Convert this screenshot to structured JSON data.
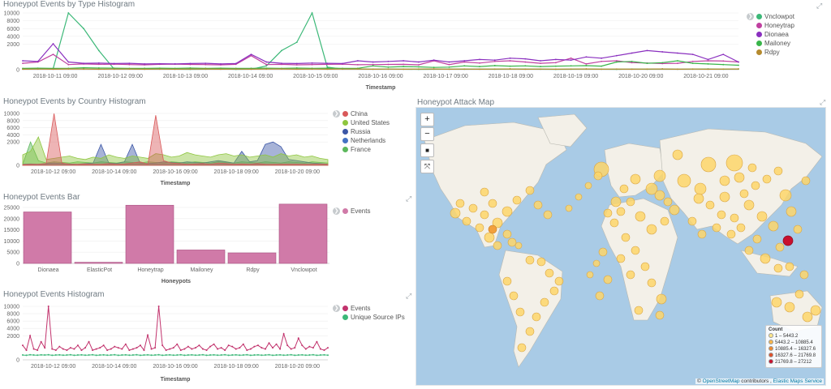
{
  "panels": {
    "type_hist": {
      "title": "Honeypot Events by Type Histogram",
      "xlabel": "Timestamp"
    },
    "country_hist": {
      "title": "Honeypot Events by Country Histogram",
      "xlabel": "Timestamp"
    },
    "bar": {
      "title": "Honeypot Events Bar",
      "xlabel": "Honeypots"
    },
    "events_hist": {
      "title": "Honeypot Events Histogram",
      "xlabel": "Timestamp"
    },
    "map": {
      "title": "Honeypot Attack Map"
    }
  },
  "legend_toggle": "❯",
  "map_controls": {
    "zoom_in": "+",
    "zoom_out": "−",
    "draw_rect": "■",
    "fit_bounds": "⤧"
  },
  "map_legend": {
    "title": "Count",
    "ranges": [
      {
        "label": "1 – 5443.2",
        "color": "#fde68a"
      },
      {
        "label": "5443.2 – 10885.4",
        "color": "#f8b74a"
      },
      {
        "label": "10885.4 – 16327.6",
        "color": "#ef8a2e"
      },
      {
        "label": "16327.6 – 21769.8",
        "color": "#e0512a"
      },
      {
        "label": "21769.8 – 27212",
        "color": "#c8102e"
      }
    ]
  },
  "map_attribution": {
    "symbol": "©",
    "osm": "OpenStreetMap",
    "contrib": " contributors , ",
    "ems": "Elastic Maps Service"
  },
  "map_icons": {
    "land": "world-landmass",
    "markers": "attack-circle"
  },
  "chart_data": [
    {
      "id": "type_hist",
      "type": "line",
      "title": "Honeypot Events by Type Histogram",
      "xlabel": "Timestamp",
      "x_ticks": [
        "2018-10-11 09:00",
        "2018-10-12 09:00",
        "2018-10-13 09:00",
        "2018-10-14 09:00",
        "2018-10-15 09:00",
        "2018-10-16 09:00",
        "2018-10-17 09:00",
        "2018-10-18 09:00",
        "2018-10-19 09:00",
        "2018-10-20 09:00",
        "2018-10-21 09:00"
      ],
      "y_ticks": [
        "0",
        "2000",
        "4000",
        "6000",
        "8000",
        "10000"
      ],
      "ylim": [
        0,
        10000
      ],
      "series": [
        {
          "name": "Vnclowpot",
          "color": "#3cb878",
          "values": [
            50,
            60,
            80,
            10000,
            6000,
            1500,
            50,
            60,
            40,
            50,
            40,
            30,
            40,
            50,
            30,
            40,
            300,
            1500,
            2500,
            10000,
            200,
            50,
            60,
            40,
            50,
            40,
            30,
            40,
            50,
            40,
            50,
            40,
            60,
            50,
            40,
            30,
            40,
            50,
            40,
            30,
            50,
            40,
            60,
            40,
            50,
            60,
            40,
            50
          ]
        },
        {
          "name": "Honeytrap",
          "color": "#c040a0",
          "values": [
            500,
            600,
            1200,
            400,
            450,
            420,
            430,
            400,
            380,
            420,
            430,
            410,
            400,
            380,
            420,
            1100,
            400,
            420,
            380,
            400,
            420,
            430,
            390,
            400,
            410,
            420,
            380,
            700,
            400,
            600,
            520,
            650,
            700,
            600,
            500,
            550,
            900,
            450,
            650,
            700,
            550,
            520,
            480,
            500,
            650,
            700,
            680,
            600
          ]
        },
        {
          "name": "Dionaea",
          "color": "#8a2fbf",
          "values": [
            700,
            650,
            2100,
            600,
            500,
            520,
            480,
            500,
            450,
            470,
            460,
            480,
            500,
            450,
            480,
            1200,
            600,
            500,
            480,
            520,
            500,
            480,
            700,
            600,
            650,
            700,
            600,
            750,
            600,
            700,
            800,
            750,
            900,
            850,
            700,
            800,
            750,
            1000,
            900,
            1100,
            1300,
            1500,
            1400,
            1300,
            1200,
            800,
            1200,
            600
          ]
        },
        {
          "name": "Mailoney",
          "color": "#39b54a",
          "values": [
            100,
            120,
            100,
            110,
            150,
            130,
            120,
            100,
            110,
            120,
            100,
            130,
            110,
            120,
            100,
            110,
            120,
            100,
            130,
            110,
            120,
            100,
            110,
            300,
            200,
            250,
            220,
            180,
            200,
            300,
            250,
            320,
            280,
            300,
            250,
            280,
            300,
            320,
            280,
            600,
            650,
            500,
            550,
            700,
            500,
            450,
            400,
            350
          ]
        },
        {
          "name": "Rdpy",
          "color": "#b58a2e",
          "values": [
            40,
            50,
            40,
            60,
            50,
            40,
            50,
            60,
            40,
            50,
            40,
            50,
            60,
            40,
            50,
            40,
            50,
            60,
            40,
            50,
            40,
            50,
            60,
            40,
            50,
            40,
            50,
            60,
            40,
            50,
            40,
            50,
            60,
            40,
            50,
            40,
            50,
            60,
            40,
            50,
            40,
            50,
            60,
            40,
            50,
            40,
            50,
            60
          ]
        }
      ]
    },
    {
      "id": "country_hist",
      "type": "area",
      "title": "Honeypot Events by Country Histogram",
      "xlabel": "Timestamp",
      "x_ticks": [
        "2018-10-12 09:00",
        "2018-10-14 09:00",
        "2018-10-16 09:00",
        "2018-10-18 09:00",
        "2018-10-20 09:00"
      ],
      "y_ticks": [
        "0",
        "2000",
        "4000",
        "6000",
        "8000",
        "10000"
      ],
      "ylim": [
        0,
        10000
      ],
      "series": [
        {
          "name": "China",
          "color": "#d9595a",
          "values": [
            50,
            80,
            100,
            150,
            10000,
            200,
            100,
            80,
            120,
            100,
            90,
            150,
            100,
            120,
            200,
            300,
            100,
            9500,
            400,
            200,
            150,
            100,
            120,
            150,
            100,
            200,
            150,
            100,
            120,
            100,
            150,
            100,
            80,
            100,
            90,
            100,
            80,
            90,
            100,
            80
          ]
        },
        {
          "name": "United States",
          "color": "#8ec63f",
          "values": [
            900,
            1200,
            3400,
            500,
            600,
            700,
            800,
            600,
            500,
            700,
            600,
            900,
            700,
            600,
            800,
            700,
            600,
            1000,
            900,
            700,
            800,
            1100,
            900,
            800,
            700,
            900,
            1000,
            800,
            900,
            700,
            800,
            900,
            700,
            1000,
            800,
            900,
            700,
            800,
            600,
            500
          ]
        },
        {
          "name": "Russia",
          "color": "#3b56a6",
          "values": [
            100,
            120,
            100,
            150,
            200,
            150,
            120,
            100,
            150,
            200,
            1800,
            200,
            150,
            300,
            1800,
            200,
            150,
            200,
            300,
            250,
            200,
            300,
            250,
            200,
            300,
            400,
            300,
            200,
            1200,
            300,
            400,
            1800,
            2000,
            1600,
            500,
            400,
            300,
            200,
            150,
            100
          ]
        },
        {
          "name": "Netherlands",
          "color": "#4472c4",
          "values": [
            50,
            60,
            50,
            80,
            60,
            50,
            70,
            60,
            50,
            60,
            70,
            60,
            50,
            60,
            70,
            60,
            50,
            60,
            70,
            60,
            50,
            60,
            70,
            60,
            50,
            60,
            70,
            60,
            50,
            60,
            70,
            60,
            50,
            60,
            70,
            60,
            50,
            60,
            70,
            60
          ]
        },
        {
          "name": "France",
          "color": "#5cb85c",
          "values": [
            100,
            2000,
            400,
            200,
            300,
            250,
            200,
            300,
            250,
            200,
            300,
            250,
            200,
            300,
            250,
            200,
            300,
            250,
            200,
            300,
            250,
            200,
            300,
            250,
            200,
            300,
            250,
            200,
            300,
            250,
            200,
            300,
            250,
            200,
            300,
            250,
            200,
            300,
            250,
            200
          ]
        }
      ]
    },
    {
      "id": "bar",
      "type": "bar",
      "title": "Honeypot Events Bar",
      "xlabel": "Honeypots",
      "categories": [
        "Dionaea",
        "ElasticPot",
        "Honeytrap",
        "Mailoney",
        "Rdpy",
        "Vnclowpot"
      ],
      "y_ticks": [
        "0",
        "5000",
        "10000",
        "15000",
        "20000",
        "25000"
      ],
      "ylim": [
        0,
        25000
      ],
      "series": [
        {
          "name": "Events",
          "color": "#d07aa8",
          "values": [
            23000,
            500,
            26000,
            6000,
            4700,
            26500
          ]
        }
      ]
    },
    {
      "id": "events_hist",
      "type": "line",
      "title": "Honeypot Events Histogram",
      "xlabel": "Timestamp",
      "x_ticks": [
        "2018-10-12 09:00",
        "2018-10-14 09:00",
        "2018-10-16 09:00",
        "2018-10-18 09:00",
        "2018-10-20 09:00"
      ],
      "y_ticks": [
        "0",
        "2000",
        "4000",
        "6000",
        "8000",
        "10000"
      ],
      "ylim": [
        0,
        10000
      ],
      "series": [
        {
          "name": "Events",
          "color": "#c2336d",
          "values": [
            1200,
            800,
            2000,
            900,
            800,
            1500,
            1000,
            10000,
            900,
            800,
            1100,
            900,
            800,
            1000,
            900,
            1200,
            800,
            1000,
            1500,
            800,
            900,
            1000,
            1200,
            800,
            900,
            1100,
            1000,
            900,
            1300,
            800,
            900,
            1000,
            1200,
            800,
            2200,
            900,
            1000,
            10000,
            1200,
            800,
            900,
            1000,
            1300,
            800,
            900,
            1100,
            900,
            1000,
            1200,
            900,
            800,
            1100,
            1300,
            900,
            1000,
            800,
            1200,
            1100,
            900,
            1000,
            1300,
            800,
            900,
            1100,
            1200,
            1000,
            900,
            1400,
            1000,
            1300,
            900,
            2500,
            1200,
            900,
            1000,
            1800,
            1200,
            900,
            1100,
            1000,
            1500,
            900,
            800,
            1000
          ]
        },
        {
          "name": "Unique Source IPs",
          "color": "#3cb878",
          "values": [
            400,
            380,
            420,
            400,
            390,
            410,
            400,
            420,
            380,
            400,
            410,
            390,
            400,
            420,
            380,
            400,
            410,
            390,
            400,
            420,
            380,
            400,
            410,
            390,
            400,
            420,
            380,
            400,
            410,
            390,
            400,
            420,
            380,
            400,
            410,
            390,
            400,
            420,
            380,
            400,
            410,
            390,
            400,
            420,
            380,
            400,
            410,
            390,
            400,
            420,
            380,
            400,
            410,
            390,
            400,
            420,
            380,
            400,
            410,
            390,
            400,
            420,
            380,
            400,
            410,
            390,
            400,
            420,
            380,
            400,
            410,
            390,
            400,
            420,
            380,
            400,
            410,
            390,
            400,
            420,
            380,
            400,
            410,
            390
          ]
        }
      ]
    }
  ]
}
